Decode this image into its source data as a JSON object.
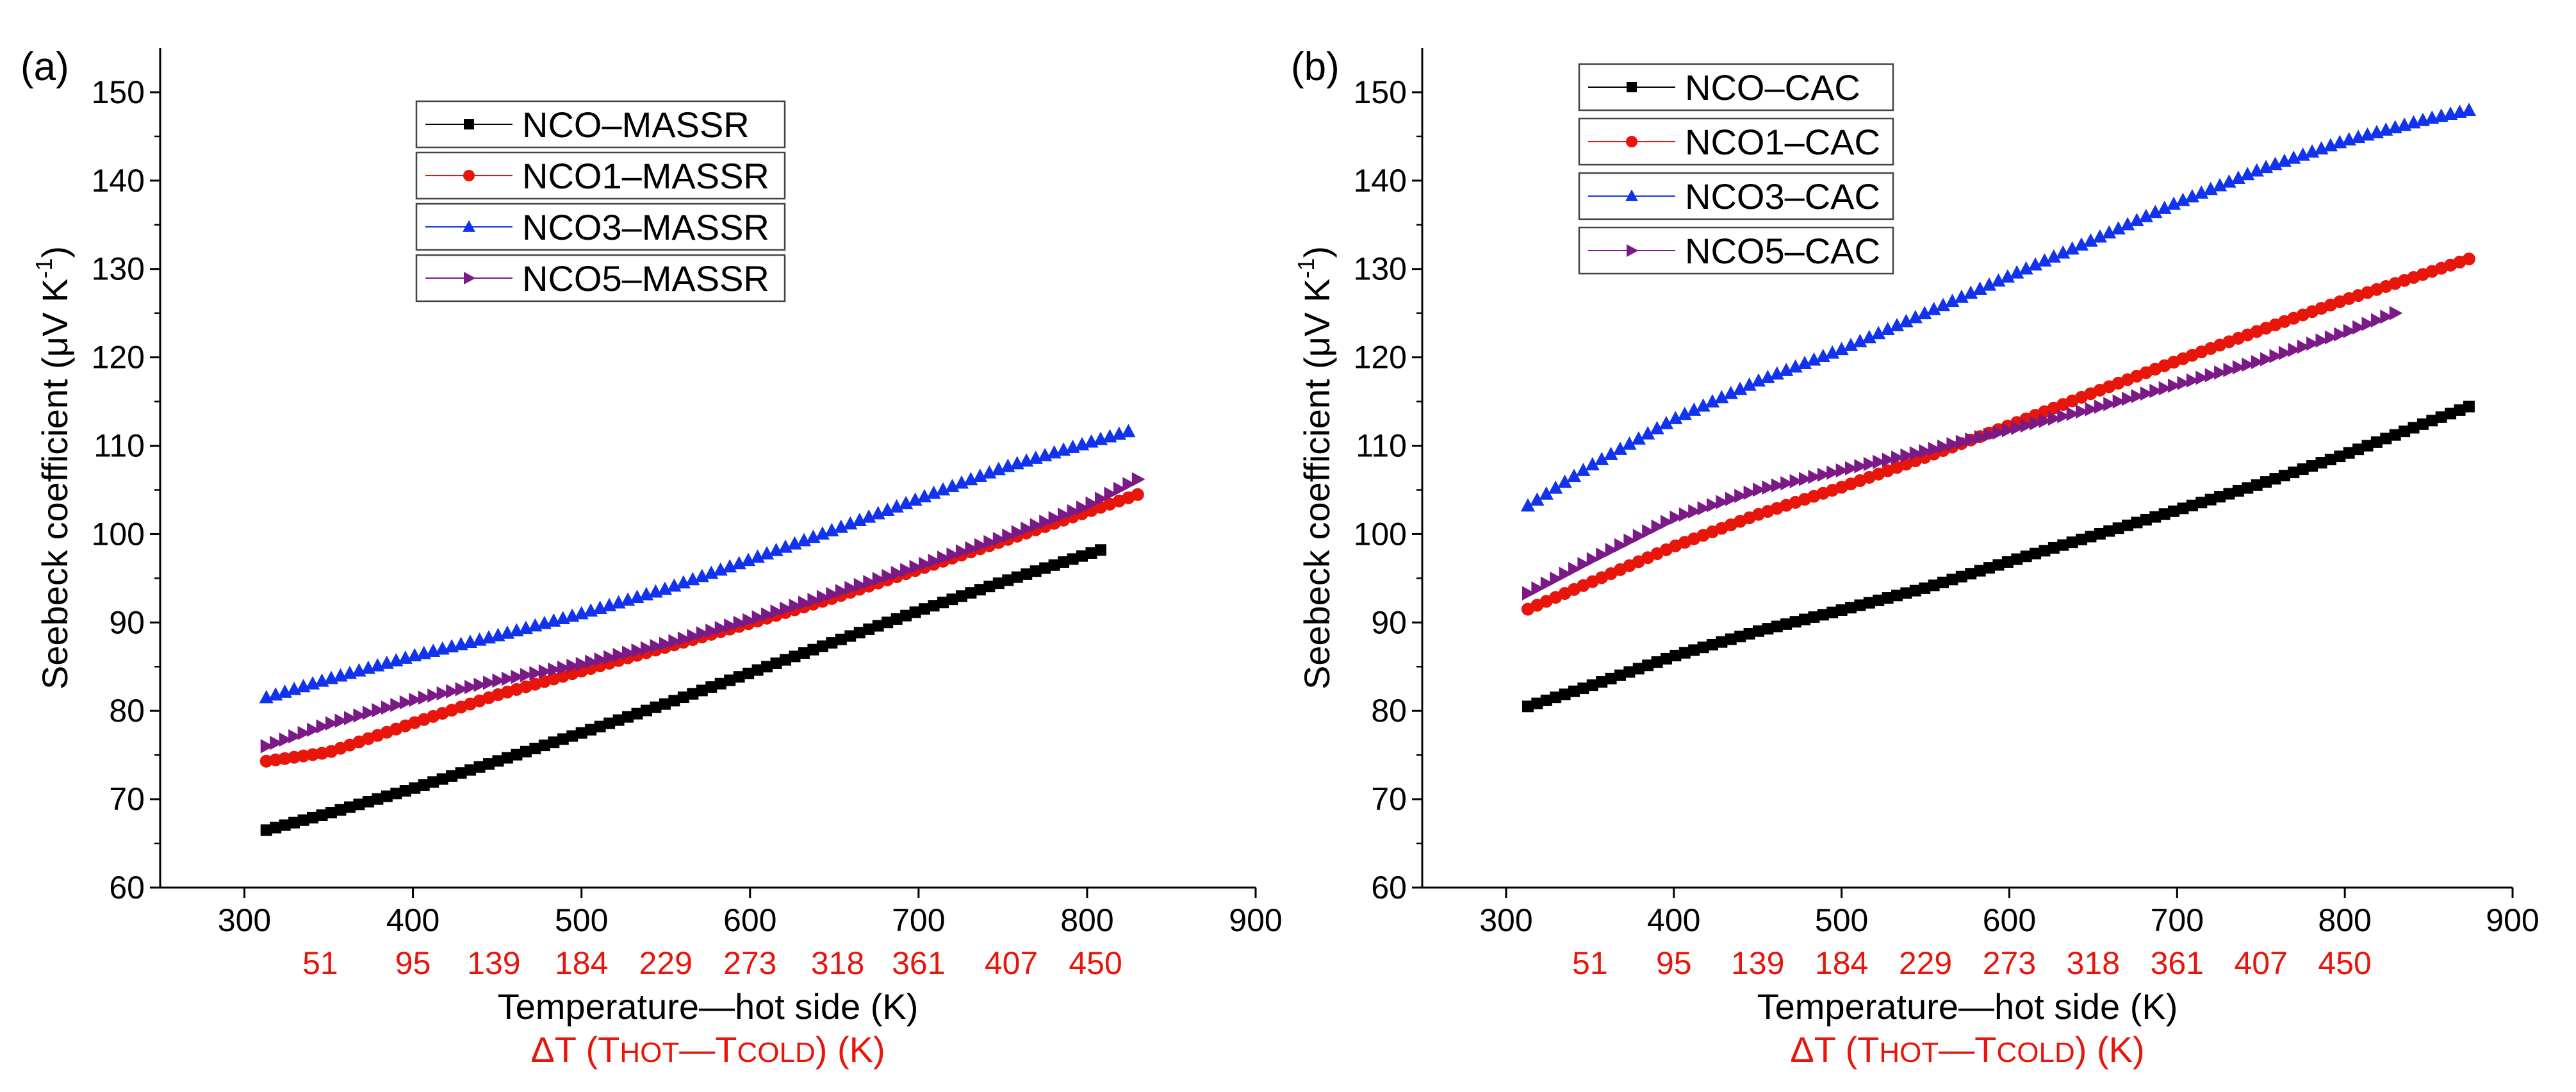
{
  "chart_data": [
    {
      "panel": "(a)",
      "type": "scatter",
      "xlabel": "Temperature—hot side (K)",
      "ylabel": "Seebeck coefficient (μV K-1)",
      "ylabel_parts": {
        "main": "Seebeck coefficient (",
        "mu": "μ",
        "unit": "V K",
        "sup": "-1",
        "end": ")"
      },
      "xlim": [
        250,
        900
      ],
      "ylim": [
        60,
        155
      ],
      "xticks": [
        300,
        400,
        500,
        600,
        700,
        800,
        900
      ],
      "yticks": [
        60,
        70,
        80,
        90,
        100,
        110,
        120,
        130,
        140,
        150
      ],
      "secondary_xaxis": {
        "title": "ΔT (THOT—TCOLD) (K)",
        "title_parts": {
          "pre": "ΔT (T",
          "hot": "HOT",
          "dash": "—T",
          "cold": "COLD",
          "end": ") (K)"
        },
        "color": "#e8150b",
        "ticks": [
          {
            "at": 345,
            "label": "51"
          },
          {
            "at": 400,
            "label": "95"
          },
          {
            "at": 448,
            "label": "139"
          },
          {
            "at": 500,
            "label": "184"
          },
          {
            "at": 550,
            "label": "229"
          },
          {
            "at": 600,
            "label": "273"
          },
          {
            "at": 652,
            "label": "318"
          },
          {
            "at": 700,
            "label": "361"
          },
          {
            "at": 755,
            "label": "407"
          },
          {
            "at": 805,
            "label": "450"
          }
        ]
      },
      "legend_position": "top-center",
      "series": [
        {
          "name": "NCO–MASSR",
          "color": "#000000",
          "marker": "square",
          "x_range": [
            313,
            808
          ],
          "points": [
            [
              313,
              66.5
            ],
            [
              350,
              68.4
            ],
            [
              400,
              71.2
            ],
            [
              450,
              74.3
            ],
            [
              500,
              77.5
            ],
            [
              550,
              80.8
            ],
            [
              600,
              84.3
            ],
            [
              650,
              87.8
            ],
            [
              700,
              91.3
            ],
            [
              750,
              94.6
            ],
            [
              808,
              98.2
            ]
          ]
        },
        {
          "name": "NCO1–MASSR",
          "color": "#e8150b",
          "marker": "circle",
          "x_range": [
            313,
            835
          ],
          "points": [
            [
              313,
              74.3
            ],
            [
              350,
              75.3
            ],
            [
              400,
              78.6
            ],
            [
              450,
              81.8
            ],
            [
              500,
              84.5
            ],
            [
              550,
              87.2
            ],
            [
              600,
              89.9
            ],
            [
              650,
              92.8
            ],
            [
              700,
              96.0
            ],
            [
              750,
              99.2
            ],
            [
              800,
              102.5
            ],
            [
              835,
              104.8
            ]
          ]
        },
        {
          "name": "NCO3–MASSR",
          "color": "#1133ee",
          "marker": "triangle",
          "x_range": [
            313,
            828
          ],
          "points": [
            [
              313,
              81.5
            ],
            [
              350,
              83.6
            ],
            [
              400,
              86.2
            ],
            [
              450,
              88.5
            ],
            [
              500,
              91.0
            ],
            [
              550,
              93.8
            ],
            [
              600,
              97.1
            ],
            [
              650,
              100.5
            ],
            [
              700,
              104.0
            ],
            [
              750,
              107.5
            ],
            [
              800,
              110.3
            ],
            [
              828,
              111.8
            ]
          ]
        },
        {
          "name": "NCO5–MASSR",
          "color": "#7b1a86",
          "marker": "triangle-right",
          "x_range": [
            313,
            830
          ],
          "points": [
            [
              313,
              76.0
            ],
            [
              350,
              78.5
            ],
            [
              400,
              81.2
            ],
            [
              450,
              83.4
            ],
            [
              500,
              85.3
            ],
            [
              550,
              87.6
            ],
            [
              600,
              90.3
            ],
            [
              650,
              93.3
            ],
            [
              700,
              96.4
            ],
            [
              750,
              99.6
            ],
            [
              800,
              103.2
            ],
            [
              830,
              106.2
            ]
          ]
        }
      ]
    },
    {
      "panel": "(b)",
      "type": "scatter",
      "xlabel": "Temperature—hot side (K)",
      "ylabel": "Seebeck coefficient (μV K-1)",
      "ylabel_parts": {
        "main": "Seebeck coefficient (",
        "mu": "μ",
        "unit": "V K",
        "sup": "-1",
        "end": ")"
      },
      "xlim": [
        250,
        900
      ],
      "ylim": [
        60,
        155
      ],
      "xticks": [
        300,
        400,
        500,
        600,
        700,
        800,
        900
      ],
      "yticks": [
        60,
        70,
        80,
        90,
        100,
        110,
        120,
        130,
        140,
        150
      ],
      "secondary_xaxis": {
        "title": "ΔT (THOT—TCOLD) (K)",
        "title_parts": {
          "pre": "ΔT (T",
          "hot": "HOT",
          "dash": "—T",
          "cold": "COLD",
          "end": ") (K)"
        },
        "color": "#e8150b",
        "ticks": [
          {
            "at": 350,
            "label": "51"
          },
          {
            "at": 400,
            "label": "95"
          },
          {
            "at": 450,
            "label": "139"
          },
          {
            "at": 500,
            "label": "184"
          },
          {
            "at": 550,
            "label": "229"
          },
          {
            "at": 600,
            "label": "273"
          },
          {
            "at": 650,
            "label": "318"
          },
          {
            "at": 700,
            "label": "361"
          },
          {
            "at": 750,
            "label": "407"
          },
          {
            "at": 800,
            "label": "450"
          }
        ]
      },
      "legend_position": "top-left",
      "series": [
        {
          "name": "NCO–CAC",
          "color": "#000000",
          "marker": "square",
          "x_range": [
            313,
            875
          ],
          "points": [
            [
              313,
              80.5
            ],
            [
              350,
              82.8
            ],
            [
              400,
              86.2
            ],
            [
              450,
              89.0
            ],
            [
              500,
              91.4
            ],
            [
              550,
              93.9
            ],
            [
              600,
              96.9
            ],
            [
              650,
              99.8
            ],
            [
              700,
              102.7
            ],
            [
              750,
              105.7
            ],
            [
              800,
              109.0
            ],
            [
              850,
              112.7
            ],
            [
              875,
              114.5
            ]
          ]
        },
        {
          "name": "NCO1–CAC",
          "color": "#e8150b",
          "marker": "circle",
          "x_range": [
            313,
            875
          ],
          "points": [
            [
              313,
              91.5
            ],
            [
              350,
              94.5
            ],
            [
              400,
              98.6
            ],
            [
              450,
              102.2
            ],
            [
              500,
              105.3
            ],
            [
              550,
              108.7
            ],
            [
              600,
              112.3
            ],
            [
              650,
              116.0
            ],
            [
              700,
              119.6
            ],
            [
              750,
              123.1
            ],
            [
              800,
              126.5
            ],
            [
              850,
              129.6
            ],
            [
              875,
              131.2
            ]
          ]
        },
        {
          "name": "NCO3–CAC",
          "color": "#1133ee",
          "marker": "triangle",
          "x_range": [
            313,
            875
          ],
          "points": [
            [
              313,
              103.2
            ],
            [
              350,
              107.7
            ],
            [
              400,
              113.0
            ],
            [
              450,
              117.3
            ],
            [
              500,
              120.9
            ],
            [
              550,
              125.0
            ],
            [
              600,
              129.2
            ],
            [
              650,
              133.3
            ],
            [
              700,
              137.5
            ],
            [
              750,
              141.3
            ],
            [
              800,
              144.5
            ],
            [
              850,
              147.0
            ],
            [
              875,
              148.0
            ]
          ]
        },
        {
          "name": "NCO5–CAC",
          "color": "#7b1a86",
          "marker": "triangle-right",
          "x_range": [
            313,
            830
          ],
          "points": [
            [
              313,
              93.3
            ],
            [
              350,
              97.0
            ],
            [
              400,
              101.8
            ],
            [
              450,
              105.0
            ],
            [
              500,
              107.2
            ],
            [
              550,
              109.4
            ],
            [
              600,
              111.8
            ],
            [
              650,
              114.2
            ],
            [
              700,
              116.9
            ],
            [
              750,
              119.6
            ],
            [
              800,
              122.8
            ],
            [
              830,
              125.0
            ]
          ]
        }
      ]
    }
  ]
}
